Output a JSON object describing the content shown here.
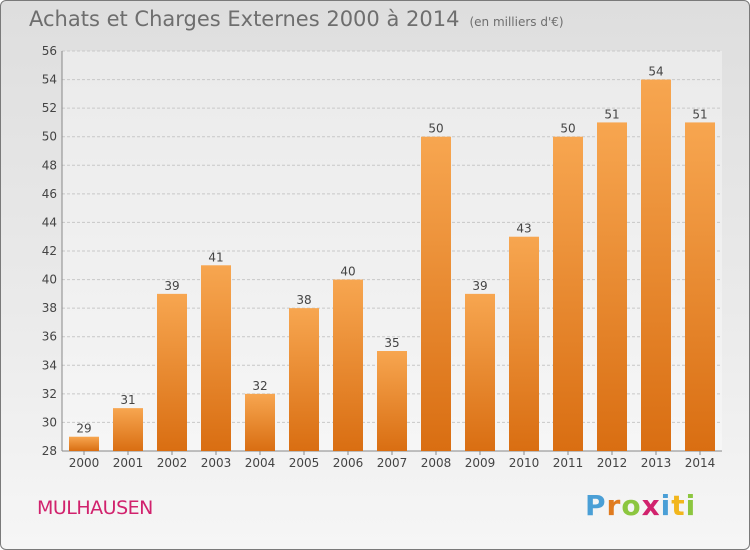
{
  "header": {
    "title": "Achats et Charges Externes 2000 à 2014",
    "subtitle": "(en milliers d'€)"
  },
  "footer": {
    "location": "MULHAUSEN",
    "logo_text": "Proxiti"
  },
  "colors": {
    "bar_light": "#f7a650",
    "bar_dark": "#d96e12",
    "grid": "#c8c8c8",
    "axis_text": "#444444",
    "location": "#d1226d"
  },
  "chart_data": {
    "type": "bar",
    "title": "Achats et Charges Externes 2000 à 2014",
    "subtitle": "(en milliers d'€)",
    "categories": [
      "2000",
      "2001",
      "2002",
      "2003",
      "2004",
      "2005",
      "2006",
      "2007",
      "2008",
      "2009",
      "2010",
      "2011",
      "2012",
      "2013",
      "2014"
    ],
    "values": [
      29,
      31,
      39,
      41,
      32,
      38,
      40,
      35,
      50,
      39,
      43,
      50,
      51,
      54,
      51
    ],
    "ylim": [
      28,
      56
    ],
    "yticks": [
      28,
      30,
      32,
      34,
      36,
      38,
      40,
      42,
      44,
      46,
      48,
      50,
      52,
      54,
      56
    ],
    "grid": true,
    "data_labels": true
  }
}
